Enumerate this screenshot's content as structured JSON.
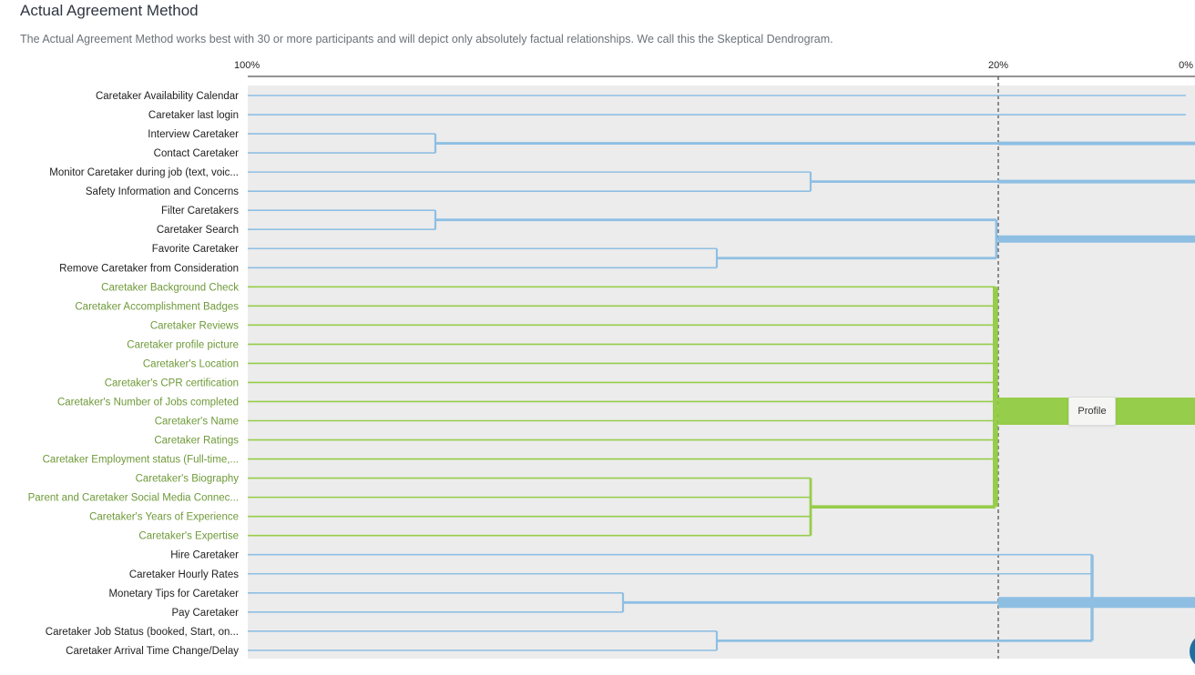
{
  "header": {
    "title": "Actual Agreement Method",
    "subtitle": "The Actual Agreement Method works best with 30 or more participants and will depict only absolutely factual relationships. We call this the Skeptical Dendrogram."
  },
  "colors": {
    "blue": "#8ebfe3",
    "green": "#96cd4a",
    "green_text": "#6f9a3a",
    "plot_bg": "#ececec",
    "axis": "#555555"
  },
  "chart_data": {
    "type": "dendrogram",
    "axis": {
      "ticks": [
        "100%",
        "20%",
        "0%"
      ],
      "tick_values": [
        100,
        20,
        0
      ],
      "direction": "descending",
      "range": [
        100,
        0
      ]
    },
    "threshold": 20,
    "leaves": [
      {
        "label": "Caretaker Availability Calendar",
        "group": "blue"
      },
      {
        "label": "Caretaker last login",
        "group": "blue"
      },
      {
        "label": "Interview Caretaker",
        "group": "blue"
      },
      {
        "label": "Contact Caretaker",
        "group": "blue"
      },
      {
        "label": "Monitor Caretaker during job (text, voic...",
        "group": "blue"
      },
      {
        "label": "Safety Information and Concerns",
        "group": "blue"
      },
      {
        "label": "Filter Caretakers",
        "group": "blue"
      },
      {
        "label": "Caretaker Search",
        "group": "blue"
      },
      {
        "label": "Favorite Caretaker",
        "group": "blue"
      },
      {
        "label": "Remove Caretaker from Consideration",
        "group": "blue"
      },
      {
        "label": "Caretaker Background Check",
        "group": "green"
      },
      {
        "label": "Caretaker Accomplishment Badges",
        "group": "green"
      },
      {
        "label": "Caretaker Reviews",
        "group": "green"
      },
      {
        "label": "Caretaker profile picture",
        "group": "green"
      },
      {
        "label": "Caretaker's Location",
        "group": "green"
      },
      {
        "label": "Caretaker's CPR certification",
        "group": "green"
      },
      {
        "label": "Caretaker's Number of Jobs completed",
        "group": "green"
      },
      {
        "label": "Caretaker's Name",
        "group": "green"
      },
      {
        "label": "Caretaker Ratings",
        "group": "green"
      },
      {
        "label": "Caretaker Employment status (Full-time,...",
        "group": "green"
      },
      {
        "label": "Caretaker's Biography",
        "group": "green"
      },
      {
        "label": "Parent and Caretaker Social Media Connec...",
        "group": "green"
      },
      {
        "label": "Caretaker's Years of Experience",
        "group": "green"
      },
      {
        "label": "Caretaker's Expertise",
        "group": "green"
      },
      {
        "label": "Hire Caretaker",
        "group": "blue"
      },
      {
        "label": "Caretaker Hourly Rates",
        "group": "blue"
      },
      {
        "label": "Monetary Tips for Caretaker",
        "group": "blue"
      },
      {
        "label": "Pay Caretaker",
        "group": "blue"
      },
      {
        "label": "Caretaker Job Status (booked, Start, on...",
        "group": "blue"
      },
      {
        "label": "Caretaker Arrival Time Change/Delay",
        "group": "blue"
      }
    ],
    "merges": [
      {
        "leaves": [
          2,
          3
        ],
        "value": 80,
        "group": "blue"
      },
      {
        "leaves": [
          4,
          5
        ],
        "value": 40,
        "group": "blue"
      },
      {
        "leaves": [
          6,
          7
        ],
        "value": 80,
        "group": "blue"
      },
      {
        "leaves": [
          8,
          9
        ],
        "value": 50,
        "group": "blue"
      },
      {
        "leaves": [
          6,
          7,
          8,
          9
        ],
        "value": 20.2,
        "group": "blue"
      },
      {
        "leaves": [
          20,
          21,
          22,
          23
        ],
        "value": 40,
        "group": "green"
      },
      {
        "leaves": [
          26,
          27
        ],
        "value": 60,
        "group": "blue"
      },
      {
        "leaves": [
          28,
          29
        ],
        "value": 50,
        "group": "blue"
      },
      {
        "leaves": [
          24,
          25,
          26,
          27,
          28,
          29
        ],
        "value": 10,
        "group": "blue"
      },
      {
        "leaves": [
          10,
          11,
          12,
          13,
          14,
          15,
          16,
          17,
          18,
          19,
          20,
          21,
          22,
          23
        ],
        "value": 20.3,
        "group": "green"
      }
    ],
    "clusters": [
      {
        "leaves": [
          0
        ],
        "group": "blue"
      },
      {
        "leaves": [
          1
        ],
        "group": "blue"
      },
      {
        "leaves": [
          2,
          3
        ],
        "group": "blue"
      },
      {
        "leaves": [
          4,
          5
        ],
        "group": "blue"
      },
      {
        "leaves": [
          6,
          7,
          8,
          9
        ],
        "group": "blue"
      },
      {
        "leaves": [
          10,
          11,
          12,
          13,
          14,
          15,
          16,
          17,
          18,
          19,
          20,
          21,
          22,
          23
        ],
        "group": "green",
        "label": "Profile"
      },
      {
        "leaves": [
          24,
          25,
          26,
          27,
          28,
          29
        ],
        "group": "blue"
      }
    ]
  }
}
